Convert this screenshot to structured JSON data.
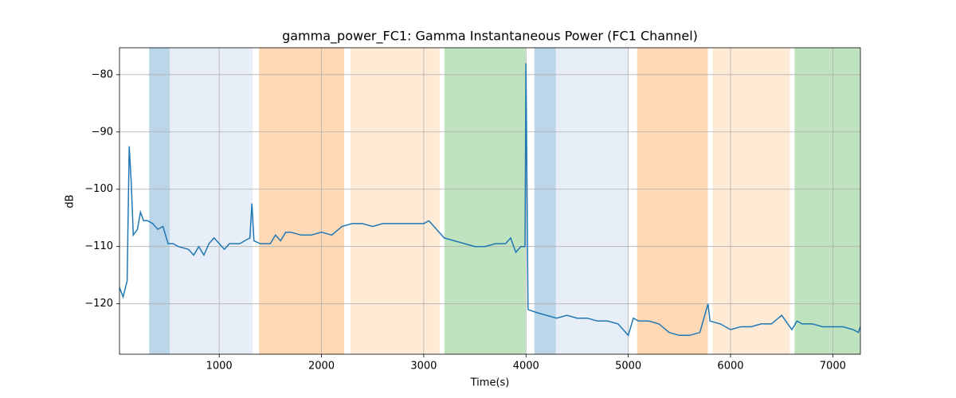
{
  "chart_data": {
    "type": "line",
    "title": "gamma_power_FC1: Gamma Instantaneous Power (FC1 Channel)",
    "xlabel": "Time(s)",
    "ylabel": "dB",
    "xlim": [
      25,
      7270
    ],
    "ylim": [
      -128.8,
      -75.3
    ],
    "xticks": [
      1000,
      2000,
      3000,
      4000,
      5000,
      6000,
      7000
    ],
    "yticks": [
      {
        "value": -80,
        "label": "−80"
      },
      {
        "value": -90,
        "label": "−90"
      },
      {
        "value": -100,
        "label": "−100"
      },
      {
        "value": -110,
        "label": "−110"
      },
      {
        "value": -120,
        "label": "−120"
      }
    ],
    "grid": true,
    "spans": [
      {
        "start": 315,
        "end": 517,
        "color": "#1f77b4"
      },
      {
        "start": 517,
        "end": 1327,
        "color": "#aec7e8"
      },
      {
        "start": 1389,
        "end": 2222,
        "color": "#ff7f0e"
      },
      {
        "start": 2284,
        "end": 3156,
        "color": "#ffbb78"
      },
      {
        "start": 3202,
        "end": 3996,
        "color": "#2ca02c"
      },
      {
        "start": 4082,
        "end": 4292,
        "color": "#1f77b4"
      },
      {
        "start": 4292,
        "end": 5000,
        "color": "#aec7e8"
      },
      {
        "start": 5086,
        "end": 5778,
        "color": "#ff7f0e"
      },
      {
        "start": 5825,
        "end": 6580,
        "color": "#ffbb78"
      },
      {
        "start": 6626,
        "end": 7265,
        "color": "#2ca02c"
      }
    ],
    "x": [
      0,
      60,
      100,
      120,
      140,
      160,
      200,
      230,
      260,
      300,
      350,
      400,
      450,
      500,
      550,
      600,
      700,
      750,
      800,
      850,
      900,
      950,
      1000,
      1050,
      1100,
      1200,
      1250,
      1300,
      1320,
      1340,
      1400,
      1500,
      1550,
      1600,
      1650,
      1700,
      1800,
      1900,
      2000,
      2100,
      2200,
      2300,
      2400,
      2500,
      2600,
      2700,
      2800,
      2900,
      3000,
      3050,
      3100,
      3200,
      3300,
      3400,
      3500,
      3600,
      3700,
      3800,
      3850,
      3900,
      3950,
      3990,
      4000,
      4020,
      4100,
      4200,
      4300,
      4400,
      4500,
      4600,
      4700,
      4800,
      4900,
      5000,
      5050,
      5100,
      5200,
      5300,
      5400,
      5500,
      5600,
      5700,
      5780,
      5800,
      5900,
      6000,
      6100,
      6200,
      6300,
      6400,
      6500,
      6600,
      6650,
      6700,
      6800,
      6900,
      7000,
      7100,
      7200,
      7250,
      7270
    ],
    "series": [
      {
        "color": "#1f77b4",
        "values": [
          -116,
          -118.8,
          -116,
          -92.5,
          -99,
          -108,
          -107,
          -104,
          -105.5,
          -105.5,
          -106,
          -107,
          -106.5,
          -109.5,
          -109.5,
          -110,
          -110.5,
          -111.5,
          -110,
          -111.5,
          -109.5,
          -108.5,
          -109.5,
          -110.5,
          -109.5,
          -109.5,
          -109,
          -108.5,
          -102.5,
          -109,
          -109.5,
          -109.5,
          -108,
          -109,
          -107.5,
          -107.5,
          -108,
          -108,
          -107.5,
          -108,
          -106.5,
          -106,
          -106,
          -106.5,
          -106,
          -106,
          -106,
          -106,
          -106,
          -105.5,
          -106.5,
          -108.5,
          -109,
          -109.5,
          -110,
          -110,
          -109.5,
          -109.5,
          -108.5,
          -111,
          -110,
          -110,
          -78,
          -121,
          -121.5,
          -122,
          -122.5,
          -122,
          -122.5,
          -122.5,
          -123,
          -123,
          -123.5,
          -125.5,
          -122.5,
          -123,
          -123,
          -123.5,
          -125,
          -125.5,
          -125.5,
          -125,
          -120,
          -123,
          -123.5,
          -124.5,
          -124,
          -124,
          -123.5,
          -123.5,
          -122,
          -124.5,
          -123,
          -123.5,
          -123.5,
          -124,
          -124,
          -124,
          -124.5,
          -125,
          -124
        ]
      }
    ]
  }
}
